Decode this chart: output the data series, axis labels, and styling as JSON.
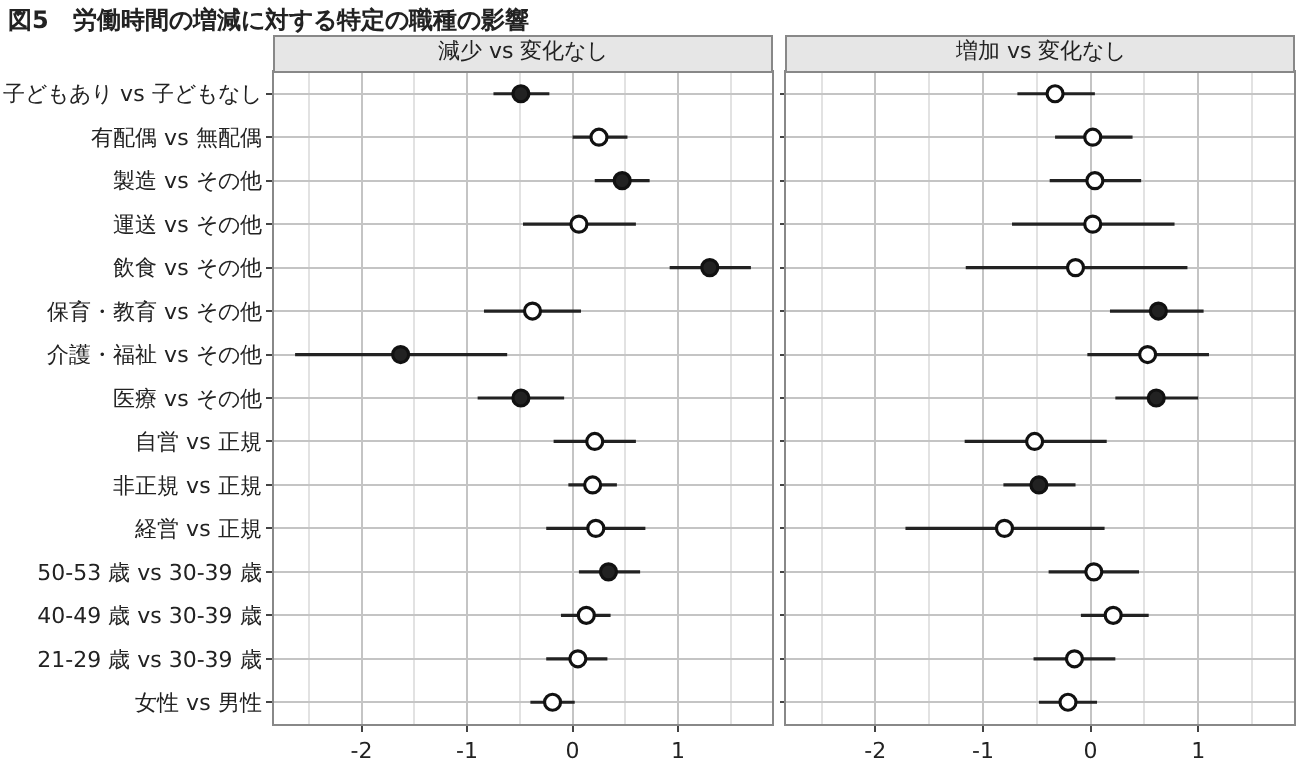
{
  "chart_data": [
    {
      "type": "scatter",
      "orientation": "horizontal",
      "title": "図5　労働時間の増減に対する特定の職種の影響",
      "subtitle": "減少 vs 変化なし",
      "categories": [
        "子どもあり vs 子どもなし",
        "有配偶 vs 無配偶",
        "製造 vs その他",
        "運送 vs その他",
        "飲食 vs その他",
        "保育・教育 vs その他",
        "介護・福祉 vs その他",
        "医療 vs その他",
        "自営 vs 正規",
        "非正規 vs 正規",
        "経営 vs 正規",
        "50-53 歳 vs 30-39 歳",
        "40-49 歳 vs 30-39 歳",
        "21-29 歳 vs 30-39 歳",
        "女性 vs 男性"
      ],
      "values": [
        -0.49,
        0.25,
        0.47,
        0.06,
        1.3,
        -0.38,
        -1.63,
        -0.49,
        0.21,
        0.19,
        0.22,
        0.34,
        0.13,
        0.05,
        -0.19
      ],
      "errors": [
        [
          -0.75,
          -0.22
        ],
        [
          0.0,
          0.52
        ],
        [
          0.21,
          0.73
        ],
        [
          -0.47,
          0.6
        ],
        [
          0.92,
          1.69
        ],
        [
          -0.84,
          0.08
        ],
        [
          -2.63,
          -0.62
        ],
        [
          -0.9,
          -0.08
        ],
        [
          -0.18,
          0.6
        ],
        [
          -0.04,
          0.42
        ],
        [
          -0.25,
          0.69
        ],
        [
          0.06,
          0.64
        ],
        [
          -0.11,
          0.36
        ],
        [
          -0.25,
          0.33
        ],
        [
          -0.4,
          0.02
        ]
      ],
      "colors": [
        "#222222",
        "#ffffff",
        "#222222",
        "#ffffff",
        "#222222",
        "#ffffff",
        "#222222",
        "#222222",
        "#ffffff",
        "#ffffff",
        "#ffffff",
        "#222222",
        "#ffffff",
        "#ffffff",
        "#ffffff"
      ],
      "marker": "circle",
      "grid": true,
      "xlim": [
        -2.83,
        1.89
      ],
      "xticks": [
        {
          "value": -2.5,
          "label": null
        },
        -2,
        {
          "value": -1.5,
          "label": null
        },
        -1,
        {
          "value": -0.5,
          "label": null
        },
        0,
        {
          "value": 0.5,
          "label": null
        },
        1,
        {
          "value": 1.5,
          "label": null
        }
      ]
    },
    {
      "type": "scatter",
      "orientation": "horizontal",
      "subtitle": "増加 vs 変化なし",
      "categories": [
        null,
        null,
        null,
        null,
        null,
        null,
        null,
        null,
        null,
        null,
        null,
        null,
        null,
        null,
        null
      ],
      "values": [
        -0.33,
        0.02,
        0.04,
        0.02,
        -0.14,
        0.63,
        0.53,
        0.61,
        -0.52,
        -0.48,
        -0.8,
        0.03,
        0.21,
        -0.15,
        -0.21
      ],
      "errors": [
        [
          -0.68,
          0.04
        ],
        [
          -0.33,
          0.39
        ],
        [
          -0.38,
          0.47
        ],
        [
          -0.73,
          0.78
        ],
        [
          -1.16,
          0.9
        ],
        [
          0.18,
          1.05
        ],
        [
          -0.03,
          1.1
        ],
        [
          0.23,
          1.0
        ],
        [
          -1.17,
          0.15
        ],
        [
          -0.81,
          -0.14
        ],
        [
          -1.72,
          0.13
        ],
        [
          -0.39,
          0.45
        ],
        [
          -0.09,
          0.54
        ],
        [
          -0.53,
          0.23
        ],
        [
          -0.48,
          0.06
        ]
      ],
      "colors": [
        "#ffffff",
        "#ffffff",
        "#ffffff",
        "#ffffff",
        "#ffffff",
        "#222222",
        "#ffffff",
        "#222222",
        "#ffffff",
        "#222222",
        "#ffffff",
        "#ffffff",
        "#ffffff",
        "#ffffff",
        "#ffffff"
      ],
      "marker": "circle",
      "grid": true,
      "xlim": [
        -2.83,
        1.89
      ],
      "xticks": [
        {
          "value": -2.5,
          "label": null
        },
        -2,
        {
          "value": -1.5,
          "label": null
        },
        -1,
        {
          "value": -0.5,
          "label": null
        },
        0,
        {
          "value": 0.5,
          "label": null
        },
        1,
        {
          "value": 1.5,
          "label": null
        }
      ]
    }
  ]
}
